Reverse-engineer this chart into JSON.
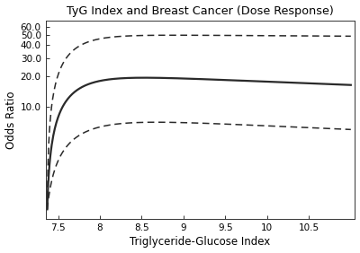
{
  "title": "TyG Index and Breast Cancer (Dose Response)",
  "xlabel": "Triglyceride-Glucose Index",
  "ylabel": "Odds Ratio",
  "xlim": [
    7.35,
    11.05
  ],
  "ylim": [
    0.8,
    70
  ],
  "xticks": [
    7.5,
    8.0,
    8.5,
    9.0,
    9.5,
    10.0,
    10.5
  ],
  "yticks": [
    10.0,
    20.0,
    30.0,
    40.0,
    50.0,
    60.0
  ],
  "background_color": "#ffffff",
  "line_color": "#2a2a2a",
  "ci_color": "#2a2a2a",
  "x_start": 7.37,
  "x_end": 11.0
}
